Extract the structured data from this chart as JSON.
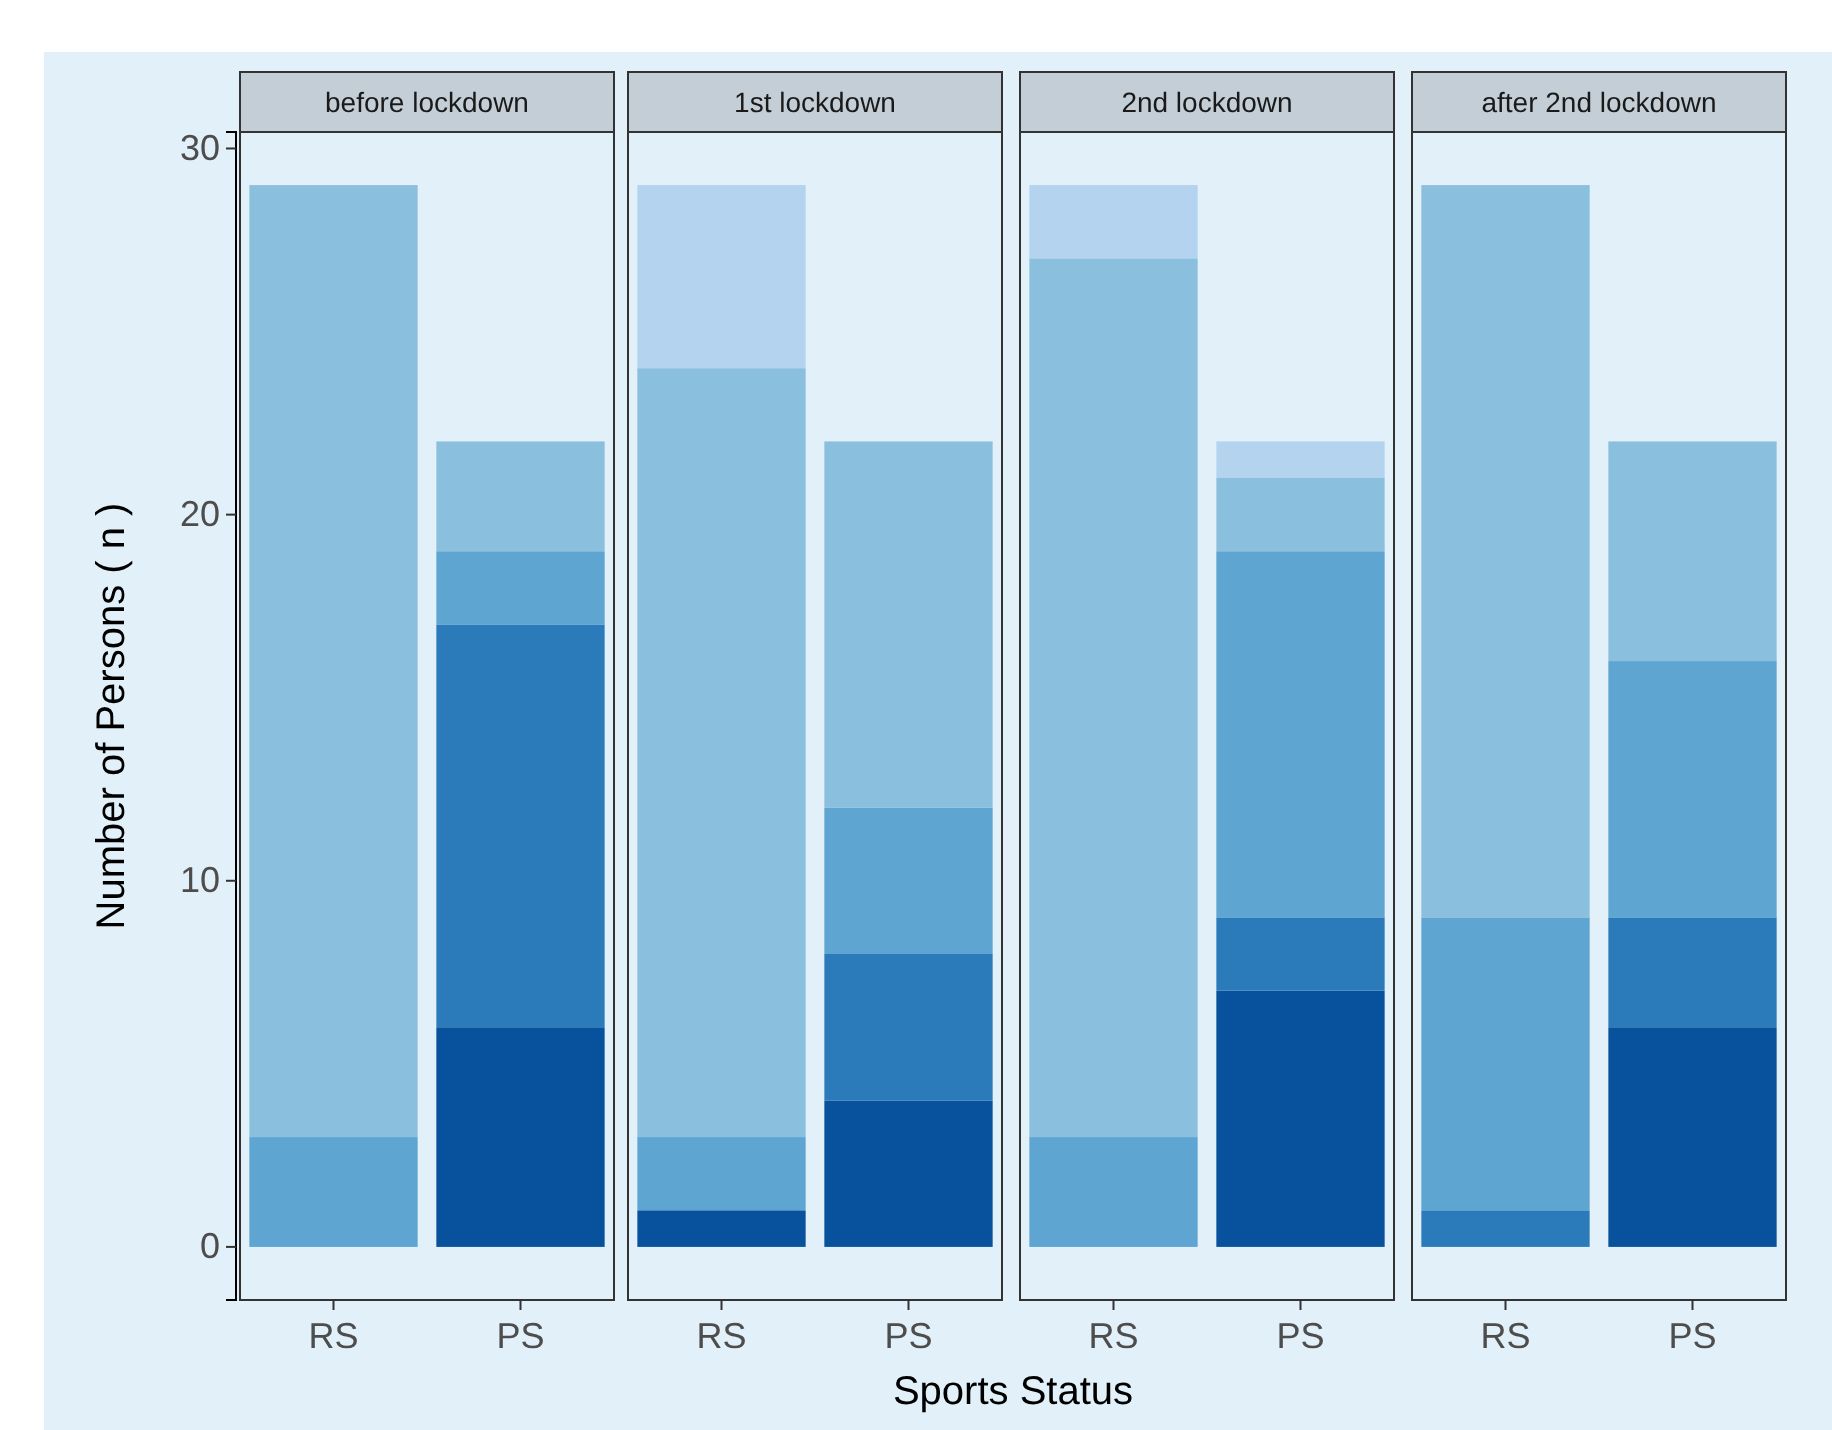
{
  "chart_data": [
    {
      "type": "bar",
      "title": "before lockdown",
      "ylabel": "Number of Persons ( n )",
      "categories": [
        "RS",
        "PS"
      ],
      "stacked": true,
      "ylim": [
        -1.45,
        30.45
      ],
      "yticks": [
        0,
        10,
        20,
        30
      ],
      "grid": false,
      "series": [
        {
          "color": "#08519c",
          "values": [
            0,
            6
          ]
        },
        {
          "color": "#2b7bba",
          "values": [
            0,
            11
          ]
        },
        {
          "color": "#5ea5d2",
          "values": [
            3,
            2
          ]
        },
        {
          "color": "#8bbfde",
          "values": [
            26,
            3
          ]
        },
        {
          "color": "#b3d3ee",
          "values": [
            0,
            0
          ]
        }
      ]
    },
    {
      "type": "bar",
      "title": "1st lockdown",
      "xlabel": "Sports Status",
      "categories": [
        "RS",
        "PS"
      ],
      "stacked": true,
      "ylim": [
        -1.45,
        30.45
      ],
      "tick_labels": "x",
      "grid": false,
      "series": [
        {
          "color": "#08519c",
          "values": [
            1,
            4
          ]
        },
        {
          "color": "#2b7bba",
          "values": [
            0,
            4
          ]
        },
        {
          "color": "#5ea5d2",
          "values": [
            2,
            4
          ]
        },
        {
          "color": "#8bbfde",
          "values": [
            21,
            10
          ]
        },
        {
          "color": "#b3d3ee",
          "values": [
            5,
            0
          ]
        }
      ]
    },
    {
      "type": "bar",
      "title": "2nd lockdown",
      "categories": [
        "RS",
        "PS"
      ],
      "stacked": true,
      "ylim": [
        -1.45,
        30.45
      ],
      "tick_labels": "x",
      "grid": false,
      "series": [
        {
          "color": "#08519c",
          "values": [
            0,
            7
          ]
        },
        {
          "color": "#2b7bba",
          "values": [
            0,
            2
          ]
        },
        {
          "color": "#5ea5d2",
          "values": [
            3,
            10
          ]
        },
        {
          "color": "#8bbfde",
          "values": [
            24,
            2
          ]
        },
        {
          "color": "#b3d3ee",
          "values": [
            2,
            1
          ]
        }
      ]
    },
    {
      "type": "bar",
      "title": "after 2nd lockdown",
      "categories": [
        "RS",
        "PS"
      ],
      "stacked": true,
      "ylim": [
        -1.45,
        30.45
      ],
      "tick_labels": "x",
      "grid": false,
      "series": [
        {
          "color": "#08519c",
          "values": [
            0,
            6
          ]
        },
        {
          "color": "#2b7bba",
          "values": [
            1,
            3
          ]
        },
        {
          "color": "#5ea5d2",
          "values": [
            8,
            7
          ]
        },
        {
          "color": "#8bbfde",
          "values": [
            20,
            6
          ]
        },
        {
          "color": "#b3d3ee",
          "values": [
            0,
            0
          ]
        }
      ]
    }
  ]
}
